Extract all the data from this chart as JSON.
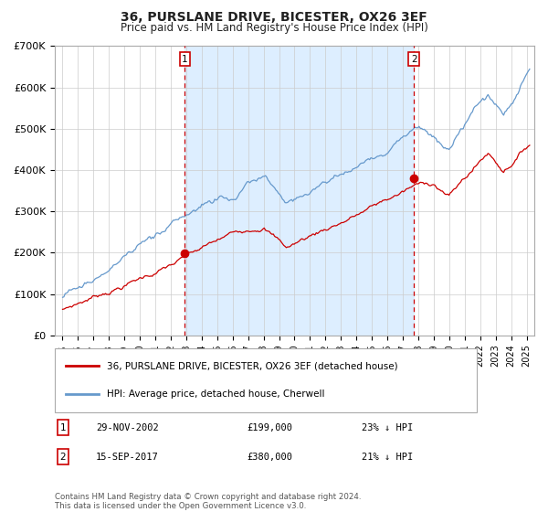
{
  "title": "36, PURSLANE DRIVE, BICESTER, OX26 3EF",
  "subtitle": "Price paid vs. HM Land Registry's House Price Index (HPI)",
  "legend_line1": "36, PURSLANE DRIVE, BICESTER, OX26 3EF (detached house)",
  "legend_line2": "HPI: Average price, detached house, Cherwell",
  "table_row1": [
    "1",
    "29-NOV-2002",
    "£199,000",
    "23% ↓ HPI"
  ],
  "table_row2": [
    "2",
    "15-SEP-2017",
    "£380,000",
    "21% ↓ HPI"
  ],
  "footnote": "Contains HM Land Registry data © Crown copyright and database right 2024.\nThis data is licensed under the Open Government Licence v3.0.",
  "red_line_color": "#cc0000",
  "blue_line_color": "#6699cc",
  "fill_color": "#ddeeff",
  "vline_color": "#cc0000",
  "background_color": "#ffffff",
  "grid_color": "#cccccc",
  "purchase1_x": 2002.91,
  "purchase1_y": 199000,
  "purchase2_x": 2017.71,
  "purchase2_y": 380000,
  "ylim": [
    0,
    700000
  ],
  "xlim": [
    1994.5,
    2025.5
  ],
  "yticks": [
    0,
    100000,
    200000,
    300000,
    400000,
    500000,
    600000,
    700000
  ],
  "ytick_labels": [
    "£0",
    "£100K",
    "£200K",
    "£300K",
    "£400K",
    "£500K",
    "£600K",
    "£700K"
  ]
}
